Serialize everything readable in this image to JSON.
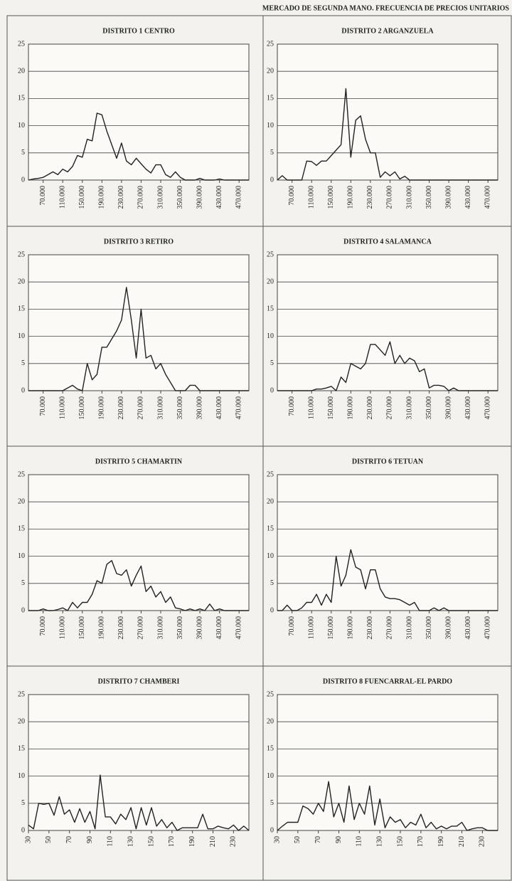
{
  "title": "MERCADO DE SEGUNDA MANO. FRECUENCIA DE PRECIOS UNITARIOS",
  "chart_data": [
    {
      "type": "line",
      "title": "DISTRITO 1 CENTRO",
      "color": "#222222",
      "x": [
        40000,
        50000,
        60000,
        70000,
        80000,
        90000,
        100000,
        110000,
        120000,
        130000,
        140000,
        150000,
        160000,
        170000,
        180000,
        190000,
        200000,
        210000,
        220000,
        230000,
        240000,
        250000,
        260000,
        270000,
        280000,
        290000,
        300000,
        310000,
        320000,
        330000,
        340000,
        350000,
        360000,
        370000,
        380000,
        390000,
        400000,
        410000,
        420000,
        430000,
        440000,
        450000,
        460000,
        470000,
        480000,
        490000
      ],
      "values": [
        0,
        0.2,
        0.3,
        0.5,
        1,
        1.5,
        1,
        2,
        1.5,
        2.5,
        4.5,
        4.2,
        7.5,
        7.2,
        12.3,
        12,
        9,
        6.5,
        4,
        6.8,
        3.5,
        2.8,
        4,
        3,
        2,
        1.3,
        2.8,
        2.8,
        1,
        0.5,
        1.5,
        0.5,
        0,
        0,
        0,
        0.3,
        0,
        0,
        0,
        0.2,
        0,
        0,
        0,
        0,
        0,
        0
      ],
      "xlim": [
        40000,
        490000
      ],
      "xticks": [
        {
          "value": 70000,
          "label": "70.000"
        },
        {
          "value": 110000,
          "label": "110.000"
        },
        {
          "value": 150000,
          "label": "150.000"
        },
        {
          "value": 190000,
          "label": "190.000"
        },
        {
          "value": 230000,
          "label": "230.000"
        },
        {
          "value": 270000,
          "label": "270.000"
        },
        {
          "value": 310000,
          "label": "310.000"
        },
        {
          "value": 350000,
          "label": "350.000"
        },
        {
          "value": 390000,
          "label": "390.000"
        },
        {
          "value": 430000,
          "label": "430.000"
        },
        {
          "value": 470000,
          "label": "470.000"
        }
      ],
      "ylim": [
        0,
        25
      ],
      "yticks": [
        0,
        5,
        10,
        15,
        20,
        25
      ],
      "grid": true
    },
    {
      "type": "line",
      "title": "DISTRITO 2 ARGANZUELA",
      "color": "#222222",
      "x": [
        40000,
        50000,
        60000,
        70000,
        80000,
        90000,
        100000,
        110000,
        120000,
        130000,
        140000,
        150000,
        160000,
        170000,
        180000,
        190000,
        200000,
        210000,
        220000,
        230000,
        240000,
        250000,
        260000,
        270000,
        280000,
        290000,
        300000,
        310000,
        320000,
        330000,
        340000,
        350000,
        360000,
        370000,
        380000,
        390000,
        400000,
        410000,
        420000,
        430000,
        440000,
        450000,
        460000,
        470000,
        480000,
        490000
      ],
      "values": [
        0,
        0.8,
        0,
        0,
        0,
        0,
        3.5,
        3.4,
        2.7,
        3.5,
        3.5,
        4.5,
        5.5,
        6.5,
        16.8,
        4.2,
        11,
        11.8,
        7.5,
        5,
        5,
        0.5,
        1.5,
        0.8,
        1.5,
        0.2,
        0.7,
        0,
        0,
        0,
        0,
        0,
        0,
        0,
        0,
        0,
        0,
        0,
        0,
        0,
        0,
        0,
        0,
        0,
        0,
        0
      ],
      "xlim": [
        40000,
        490000
      ],
      "xticks": [
        {
          "value": 70000,
          "label": "70.000"
        },
        {
          "value": 110000,
          "label": "110.000"
        },
        {
          "value": 150000,
          "label": "150.000"
        },
        {
          "value": 190000,
          "label": "190.000"
        },
        {
          "value": 230000,
          "label": "230.000"
        },
        {
          "value": 270000,
          "label": "270.000"
        },
        {
          "value": 310000,
          "label": "310.000"
        },
        {
          "value": 350000,
          "label": "350.000"
        },
        {
          "value": 390000,
          "label": "390.000"
        },
        {
          "value": 430000,
          "label": "430.000"
        },
        {
          "value": 470000,
          "label": "470.000"
        }
      ],
      "ylim": [
        0,
        25
      ],
      "yticks": [
        0,
        5,
        10,
        15,
        20,
        25
      ],
      "grid": true
    },
    {
      "type": "line",
      "title": "DISTRITO 3 RETIRO",
      "color": "#222222",
      "x": [
        40000,
        50000,
        60000,
        70000,
        80000,
        90000,
        100000,
        110000,
        120000,
        130000,
        140000,
        150000,
        160000,
        170000,
        180000,
        190000,
        200000,
        210000,
        220000,
        230000,
        240000,
        250000,
        260000,
        270000,
        280000,
        290000,
        300000,
        310000,
        320000,
        330000,
        340000,
        350000,
        360000,
        370000,
        380000,
        390000,
        400000,
        410000,
        420000,
        430000,
        440000,
        450000,
        460000,
        470000,
        480000,
        490000
      ],
      "values": [
        0,
        0,
        0,
        0,
        0,
        0,
        0,
        0,
        0.5,
        1,
        0.3,
        0,
        5,
        2,
        3,
        8,
        8,
        9.5,
        11,
        13,
        19,
        13,
        6,
        15,
        6,
        6.5,
        4,
        5,
        3,
        1.5,
        0,
        0,
        0,
        1,
        1,
        0,
        0,
        0,
        0,
        0,
        0,
        0,
        0,
        0,
        0,
        0
      ],
      "xlim": [
        40000,
        490000
      ],
      "xticks": [
        {
          "value": 70000,
          "label": "70.000"
        },
        {
          "value": 110000,
          "label": "110.000"
        },
        {
          "value": 150000,
          "label": "150.000"
        },
        {
          "value": 190000,
          "label": "190.000"
        },
        {
          "value": 230000,
          "label": "230.000"
        },
        {
          "value": 270000,
          "label": "270.000"
        },
        {
          "value": 310000,
          "label": "310.000"
        },
        {
          "value": 350000,
          "label": "350.000"
        },
        {
          "value": 390000,
          "label": "390.000"
        },
        {
          "value": 430000,
          "label": "430.000"
        },
        {
          "value": 470000,
          "label": "470.000"
        }
      ],
      "ylim": [
        0,
        25
      ],
      "yticks": [
        0,
        5,
        10,
        15,
        20,
        25
      ],
      "grid": true
    },
    {
      "type": "line",
      "title": "DISTRITO 4 SALAMANCA",
      "color": "#222222",
      "x": [
        40000,
        50000,
        60000,
        70000,
        80000,
        90000,
        100000,
        110000,
        120000,
        130000,
        140000,
        150000,
        160000,
        170000,
        180000,
        190000,
        200000,
        210000,
        220000,
        230000,
        240000,
        250000,
        260000,
        270000,
        280000,
        290000,
        300000,
        310000,
        320000,
        330000,
        340000,
        350000,
        360000,
        370000,
        380000,
        390000,
        400000,
        410000,
        420000,
        430000,
        440000,
        450000,
        460000,
        470000,
        480000,
        490000
      ],
      "values": [
        0,
        0,
        0,
        0,
        0,
        0,
        0,
        0,
        0.3,
        0.3,
        0.5,
        0.8,
        0,
        2.5,
        1.5,
        5,
        4.5,
        4,
        5,
        8.5,
        8.5,
        7.5,
        6.5,
        9,
        5,
        6.5,
        5,
        6,
        5.5,
        3.5,
        4,
        0.5,
        1,
        1,
        0.8,
        0,
        0.5,
        0,
        0,
        0,
        0,
        0,
        0,
        0,
        0,
        0
      ],
      "xlim": [
        40000,
        490000
      ],
      "xticks": [
        {
          "value": 70000,
          "label": "70.000"
        },
        {
          "value": 110000,
          "label": "110.000"
        },
        {
          "value": 150000,
          "label": "150.000"
        },
        {
          "value": 190000,
          "label": "190.000"
        },
        {
          "value": 230000,
          "label": "230.000"
        },
        {
          "value": 270000,
          "label": "270.000"
        },
        {
          "value": 310000,
          "label": "310.000"
        },
        {
          "value": 350000,
          "label": "350.000"
        },
        {
          "value": 390000,
          "label": "390.000"
        },
        {
          "value": 430000,
          "label": "430.000"
        },
        {
          "value": 470000,
          "label": "470.000"
        }
      ],
      "ylim": [
        0,
        25
      ],
      "yticks": [
        0,
        5,
        10,
        15,
        20,
        25
      ],
      "grid": true
    },
    {
      "type": "line",
      "title": "DISTRITO 5 CHAMARTIN",
      "color": "#222222",
      "x": [
        40000,
        50000,
        60000,
        70000,
        80000,
        90000,
        100000,
        110000,
        120000,
        130000,
        140000,
        150000,
        160000,
        170000,
        180000,
        190000,
        200000,
        210000,
        220000,
        230000,
        240000,
        250000,
        260000,
        270000,
        280000,
        290000,
        300000,
        310000,
        320000,
        330000,
        340000,
        350000,
        360000,
        370000,
        380000,
        390000,
        400000,
        410000,
        420000,
        430000,
        440000,
        450000,
        460000,
        470000,
        480000,
        490000
      ],
      "values": [
        0,
        0,
        0,
        0.3,
        0,
        0,
        0.2,
        0.5,
        0,
        1.5,
        0.5,
        1.5,
        1.5,
        3,
        5.5,
        5,
        8.5,
        9.2,
        6.8,
        6.5,
        7.5,
        4.5,
        6.5,
        8.2,
        3.5,
        4.5,
        2.5,
        3.5,
        1.5,
        2.5,
        0.5,
        0.3,
        0,
        0.3,
        0,
        0.3,
        0,
        1.2,
        0,
        0.3,
        0,
        0,
        0,
        0,
        0,
        0
      ],
      "xlim": [
        40000,
        490000
      ],
      "xticks": [
        {
          "value": 70000,
          "label": "70.000"
        },
        {
          "value": 110000,
          "label": "110.000"
        },
        {
          "value": 150000,
          "label": "150.000"
        },
        {
          "value": 190000,
          "label": "190.000"
        },
        {
          "value": 230000,
          "label": "230.000"
        },
        {
          "value": 270000,
          "label": "270.000"
        },
        {
          "value": 310000,
          "label": "310.000"
        },
        {
          "value": 350000,
          "label": "350.000"
        },
        {
          "value": 390000,
          "label": "390.000"
        },
        {
          "value": 430000,
          "label": "430.000"
        },
        {
          "value": 470000,
          "label": "470.000"
        }
      ],
      "ylim": [
        0,
        25
      ],
      "yticks": [
        0,
        5,
        10,
        15,
        20,
        25
      ],
      "grid": true
    },
    {
      "type": "line",
      "title": "DISTRITO 6 TETUAN",
      "color": "#222222",
      "x": [
        40000,
        50000,
        60000,
        70000,
        80000,
        90000,
        100000,
        110000,
        120000,
        130000,
        140000,
        150000,
        160000,
        170000,
        180000,
        190000,
        200000,
        210000,
        220000,
        230000,
        240000,
        250000,
        260000,
        270000,
        280000,
        290000,
        300000,
        310000,
        320000,
        330000,
        340000,
        350000,
        360000,
        370000,
        380000,
        390000,
        400000,
        410000,
        420000,
        430000,
        440000,
        450000,
        460000,
        470000,
        480000,
        490000
      ],
      "values": [
        0,
        0,
        1,
        0,
        0,
        0.5,
        1.5,
        1.5,
        3,
        1,
        3,
        1.5,
        10,
        4.5,
        6.5,
        11.2,
        8,
        7.5,
        4,
        7.5,
        7.5,
        4,
        2.5,
        2.2,
        2.2,
        2,
        1.5,
        1,
        1.5,
        0,
        0,
        0,
        0.5,
        0,
        0.5,
        0,
        0,
        0,
        0,
        0,
        0,
        0,
        0,
        0,
        0,
        0
      ],
      "xlim": [
        40000,
        490000
      ],
      "xticks": [
        {
          "value": 70000,
          "label": "70.000"
        },
        {
          "value": 110000,
          "label": "110.000"
        },
        {
          "value": 150000,
          "label": "150.000"
        },
        {
          "value": 190000,
          "label": "190.000"
        },
        {
          "value": 230000,
          "label": "230.000"
        },
        {
          "value": 270000,
          "label": "270.000"
        },
        {
          "value": 310000,
          "label": "310.000"
        },
        {
          "value": 350000,
          "label": "350.000"
        },
        {
          "value": 390000,
          "label": "390.000"
        },
        {
          "value": 430000,
          "label": "430.000"
        },
        {
          "value": 470000,
          "label": "470.000"
        }
      ],
      "ylim": [
        0,
        25
      ],
      "yticks": [
        0,
        5,
        10,
        15,
        20,
        25
      ],
      "grid": true
    },
    {
      "type": "line",
      "title": "DISTRITO 7 CHAMBERI",
      "color": "#222222",
      "x": [
        30,
        35,
        40,
        45,
        50,
        55,
        60,
        65,
        70,
        75,
        80,
        85,
        90,
        95,
        100,
        105,
        110,
        115,
        120,
        125,
        130,
        135,
        140,
        145,
        150,
        155,
        160,
        165,
        170,
        175,
        180,
        185,
        190,
        195,
        200,
        205,
        210,
        215,
        220,
        225,
        230,
        235,
        240,
        245
      ],
      "values": [
        1,
        0.3,
        5,
        4.8,
        5,
        2.8,
        6.2,
        3,
        3.8,
        1.5,
        4,
        1.5,
        3.5,
        0.3,
        10.2,
        2.5,
        2.5,
        1.2,
        3,
        2,
        4.2,
        0.3,
        4.2,
        1,
        4.2,
        0.8,
        2,
        0.5,
        1.5,
        0,
        0.5,
        0.5,
        0.5,
        0.5,
        3,
        0.3,
        0.3,
        0.8,
        0.5,
        0.3,
        1,
        0,
        0.8,
        0
      ],
      "xlim": [
        30,
        245
      ],
      "xticks": [
        30,
        50,
        70,
        90,
        110,
        130,
        150,
        170,
        190,
        210,
        230
      ],
      "ylim": [
        0,
        25
      ],
      "yticks": [
        0,
        5,
        10,
        15,
        20,
        25
      ],
      "grid": true
    },
    {
      "type": "line",
      "title": "DISTRITO 8 FUENCARRAL-EL PARDO",
      "color": "#222222",
      "x": [
        30,
        35,
        40,
        45,
        50,
        55,
        60,
        65,
        70,
        75,
        80,
        85,
        90,
        95,
        100,
        105,
        110,
        115,
        120,
        125,
        130,
        135,
        140,
        145,
        150,
        155,
        160,
        165,
        170,
        175,
        180,
        185,
        190,
        195,
        200,
        205,
        210,
        215,
        220,
        225,
        230,
        235,
        240,
        245
      ],
      "values": [
        0,
        0.8,
        1.5,
        1.5,
        1.5,
        4.5,
        4,
        3,
        5,
        3.5,
        9,
        2.5,
        5,
        1.5,
        8.2,
        2,
        5,
        3,
        8.2,
        1,
        5.8,
        0.5,
        2.5,
        1.5,
        2,
        0.5,
        1.5,
        1,
        3,
        0.5,
        1.5,
        0.3,
        0.8,
        0.3,
        0.8,
        0.8,
        1.5,
        0,
        0.3,
        0.5,
        0.5,
        0,
        0,
        0
      ],
      "xlim": [
        30,
        245
      ],
      "xticks": [
        30,
        50,
        70,
        90,
        110,
        130,
        150,
        170,
        190,
        210,
        230
      ],
      "ylim": [
        0,
        25
      ],
      "yticks": [
        0,
        5,
        10,
        15,
        20,
        25
      ],
      "grid": true
    }
  ]
}
